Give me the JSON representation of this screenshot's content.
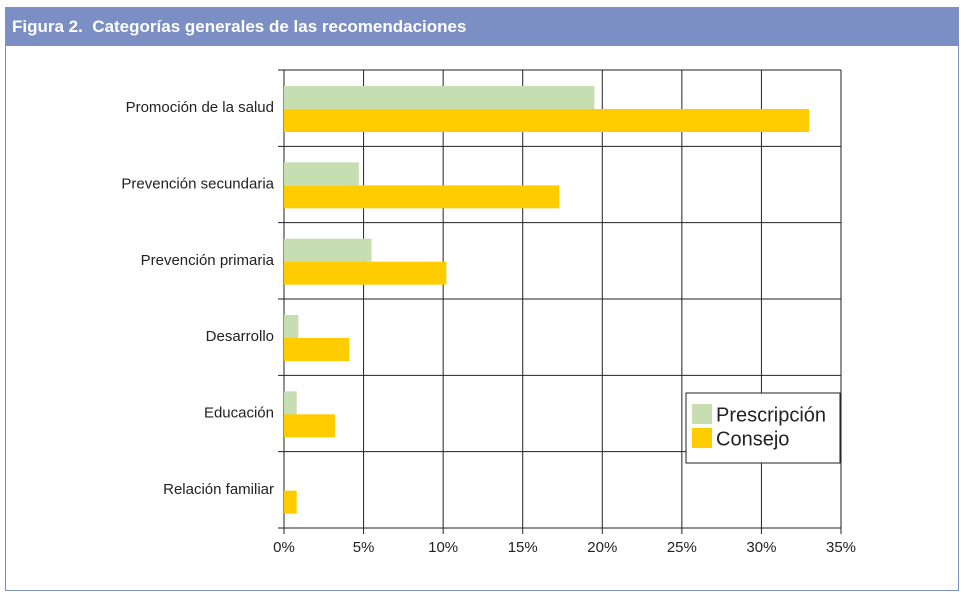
{
  "chart_data": {
    "type": "bar",
    "orientation": "horizontal",
    "title": "Figura 2.  Categorías generales de las recomendaciones",
    "categories": [
      "Promoción de la salud",
      "Prevención secundaria",
      "Prevención primaria",
      "Desarrollo",
      "Educación",
      "Relación familiar"
    ],
    "series": [
      {
        "name": "Prescripción",
        "color": "#c6deb2",
        "values": [
          19.5,
          4.7,
          5.5,
          0.9,
          0.8,
          0
        ]
      },
      {
        "name": "Consejo",
        "color": "#ffcc00",
        "values": [
          33,
          17.3,
          10.2,
          4.1,
          3.2,
          0.8
        ]
      }
    ],
    "xlim": [
      0,
      35
    ],
    "xticks": [
      {
        "value": 0,
        "label": "0%"
      },
      {
        "value": 5,
        "label": "5%"
      },
      {
        "value": 10,
        "label": "10%"
      },
      {
        "value": 15,
        "label": "15%"
      },
      {
        "value": 20,
        "label": "20%"
      },
      {
        "value": 25,
        "label": "25%"
      },
      {
        "value": 30,
        "label": "30%"
      },
      {
        "value": 35,
        "label": "35%"
      }
    ],
    "grid": true,
    "legend": "lower right"
  }
}
